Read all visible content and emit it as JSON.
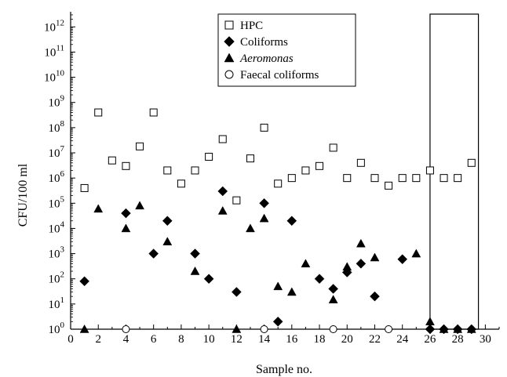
{
  "chart_data": {
    "type": "scatter",
    "xlabel": "Sample no.",
    "ylabel": "CFU/100 ml",
    "xlim": [
      0,
      31
    ],
    "ylim_log10": [
      0,
      12.6
    ],
    "y_scale": "log",
    "grid": false,
    "legend_position": "top-center",
    "x_ticks": [
      "0",
      "2",
      "4",
      "6",
      "8",
      "10",
      "12",
      "14",
      "16",
      "18",
      "20",
      "22",
      "24",
      "26",
      "28",
      "30"
    ],
    "y_ticks": [
      {
        "base": "10",
        "exp": "0"
      },
      {
        "base": "10",
        "exp": "1"
      },
      {
        "base": "10",
        "exp": "2"
      },
      {
        "base": "10",
        "exp": "3"
      },
      {
        "base": "10",
        "exp": "4"
      },
      {
        "base": "10",
        "exp": "5"
      },
      {
        "base": "10",
        "exp": "6"
      },
      {
        "base": "10",
        "exp": "7"
      },
      {
        "base": "10",
        "exp": "8"
      },
      {
        "base": "10",
        "exp": "9"
      },
      {
        "base": "10",
        "exp": "10"
      },
      {
        "base": "10",
        "exp": "11"
      },
      {
        "base": "10",
        "exp": "12"
      }
    ],
    "highlight_range_x": [
      26,
      29.5
    ],
    "series": [
      {
        "name": "HPC",
        "marker": "open-square",
        "italic": false,
        "points": [
          [
            1,
            400000.0
          ],
          [
            2,
            400000000.0
          ],
          [
            3,
            5000000.0
          ],
          [
            4,
            3000000.0
          ],
          [
            5,
            18000000.0
          ],
          [
            6,
            400000000.0
          ],
          [
            7,
            2000000.0
          ],
          [
            8,
            600000.0
          ],
          [
            9,
            2000000.0
          ],
          [
            10,
            7000000.0
          ],
          [
            11,
            35000000.0
          ],
          [
            12,
            130000.0
          ],
          [
            13,
            6000000.0
          ],
          [
            14,
            100000000.0
          ],
          [
            15,
            600000.0
          ],
          [
            16,
            1000000.0
          ],
          [
            17,
            2000000.0
          ],
          [
            18,
            3000000.0
          ],
          [
            19,
            16000000.0
          ],
          [
            20,
            1000000.0
          ],
          [
            21,
            4000000.0
          ],
          [
            22,
            1000000.0
          ],
          [
            23,
            500000.0
          ],
          [
            24,
            1000000.0
          ],
          [
            25,
            1000000.0
          ],
          [
            26,
            2000000.0
          ],
          [
            27,
            1000000.0
          ],
          [
            28,
            1000000.0
          ],
          [
            29,
            4000000.0
          ]
        ]
      },
      {
        "name": "Coliforms",
        "marker": "filled-diamond",
        "italic": false,
        "points": [
          [
            1,
            80
          ],
          [
            4,
            40000.0
          ],
          [
            6,
            1000.0
          ],
          [
            7,
            20000.0
          ],
          [
            9,
            1000.0
          ],
          [
            10,
            100
          ],
          [
            11,
            300000.0
          ],
          [
            12,
            30
          ],
          [
            14,
            100000.0
          ],
          [
            15,
            2
          ],
          [
            16,
            20000.0
          ],
          [
            18,
            100
          ],
          [
            19,
            40
          ],
          [
            20,
            180
          ],
          [
            21,
            400
          ],
          [
            22,
            20
          ],
          [
            24,
            600
          ],
          [
            26,
            1
          ],
          [
            27,
            1
          ],
          [
            28,
            1
          ],
          [
            29,
            1
          ]
        ]
      },
      {
        "name": "Aeromonas",
        "marker": "filled-triangle",
        "italic": true,
        "points": [
          [
            1,
            1
          ],
          [
            2,
            60000.0
          ],
          [
            4,
            10000.0
          ],
          [
            5,
            80000.0
          ],
          [
            7,
            3000.0
          ],
          [
            9,
            200
          ],
          [
            11,
            50000.0
          ],
          [
            12,
            1
          ],
          [
            13,
            10000.0
          ],
          [
            14,
            25000.0
          ],
          [
            15,
            50
          ],
          [
            16,
            30
          ],
          [
            17,
            400
          ],
          [
            19,
            15
          ],
          [
            20,
            300
          ],
          [
            21,
            2500.0
          ],
          [
            22,
            700
          ],
          [
            25,
            1000.0
          ],
          [
            26,
            2
          ],
          [
            27,
            1
          ],
          [
            28,
            1
          ],
          [
            29,
            1
          ]
        ]
      },
      {
        "name": "Faecal coliforms",
        "marker": "open-circle",
        "italic": false,
        "points": [
          [
            4,
            1
          ],
          [
            14,
            1
          ],
          [
            19,
            1
          ],
          [
            23,
            1
          ]
        ]
      }
    ]
  }
}
